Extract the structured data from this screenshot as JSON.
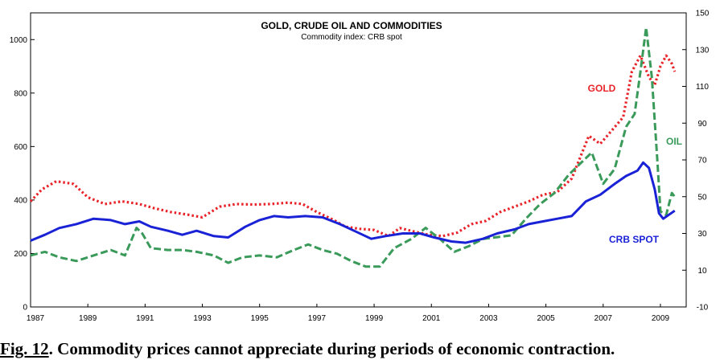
{
  "colors": {
    "gold": "#e8242a",
    "oil": "#3a9a5a",
    "crb": "#1a22d6",
    "axis": "#000000",
    "background": "#ffffff"
  },
  "caption": {
    "fig_ref": "Fig. 12",
    "text": ". Commodity prices cannot appreciate during periods of economic contraction."
  },
  "chart_data": {
    "type": "line",
    "title": "GOLD, CRUDE OIL AND COMMODITIES",
    "subtitle": "Commodity index: CRB spot",
    "legend_placement": "inline labels near series",
    "grid": false,
    "x_ticks": [
      "1987",
      "1989",
      "1991",
      "1993",
      "1995",
      "1997",
      "1999",
      "2001",
      "2003",
      "2005",
      "2007",
      "2009"
    ],
    "xlim": [
      1987,
      2009.9
    ],
    "ylim_left": [
      0,
      1100
    ],
    "yticks_left": [
      "0",
      "200",
      "400",
      "600",
      "800",
      "1000"
    ],
    "ylim_right": [
      -10,
      150
    ],
    "yticks_right": [
      "-10",
      "10",
      "30",
      "50",
      "70",
      "90",
      "110",
      "130",
      "150"
    ],
    "series": [
      {
        "name": "GOLD",
        "axis": "left",
        "style": "dotted",
        "points": [
          [
            1987.0,
            395
          ],
          [
            1987.4,
            440
          ],
          [
            1987.9,
            470
          ],
          [
            1988.5,
            460
          ],
          [
            1989.0,
            410
          ],
          [
            1989.6,
            385
          ],
          [
            1990.2,
            395
          ],
          [
            1990.8,
            385
          ],
          [
            1991.3,
            370
          ],
          [
            1991.9,
            355
          ],
          [
            1992.5,
            345
          ],
          [
            1993.0,
            335
          ],
          [
            1993.6,
            375
          ],
          [
            1994.2,
            385
          ],
          [
            1994.8,
            383
          ],
          [
            1995.4,
            385
          ],
          [
            1996.0,
            390
          ],
          [
            1996.5,
            385
          ],
          [
            1997.0,
            355
          ],
          [
            1997.6,
            325
          ],
          [
            1998.0,
            300
          ],
          [
            1998.5,
            292
          ],
          [
            1999.0,
            288
          ],
          [
            1999.5,
            265
          ],
          [
            1999.9,
            295
          ],
          [
            2000.4,
            282
          ],
          [
            2000.9,
            270
          ],
          [
            2001.4,
            265
          ],
          [
            2001.9,
            278
          ],
          [
            2002.4,
            310
          ],
          [
            2002.9,
            322
          ],
          [
            2003.4,
            355
          ],
          [
            2003.9,
            375
          ],
          [
            2004.4,
            395
          ],
          [
            2004.9,
            420
          ],
          [
            2005.4,
            430
          ],
          [
            2005.9,
            480
          ],
          [
            2006.2,
            560
          ],
          [
            2006.5,
            640
          ],
          [
            2006.9,
            610
          ],
          [
            2007.3,
            660
          ],
          [
            2007.7,
            710
          ],
          [
            2008.0,
            880
          ],
          [
            2008.3,
            940
          ],
          [
            2008.6,
            860
          ],
          [
            2008.8,
            830
          ],
          [
            2009.0,
            900
          ],
          [
            2009.2,
            940
          ],
          [
            2009.4,
            910
          ],
          [
            2009.5,
            880
          ]
        ]
      },
      {
        "name": "OIL",
        "axis": "right",
        "style": "dashed",
        "points": [
          [
            1987.0,
            18
          ],
          [
            1987.5,
            20
          ],
          [
            1988.0,
            17
          ],
          [
            1988.6,
            15
          ],
          [
            1989.2,
            18
          ],
          [
            1989.8,
            21
          ],
          [
            1990.3,
            18
          ],
          [
            1990.7,
            33
          ],
          [
            1990.9,
            30
          ],
          [
            1991.2,
            22
          ],
          [
            1991.8,
            21
          ],
          [
            1992.3,
            21
          ],
          [
            1992.8,
            20
          ],
          [
            1993.4,
            18
          ],
          [
            1993.9,
            14
          ],
          [
            1994.4,
            17
          ],
          [
            1995.0,
            18
          ],
          [
            1995.6,
            17
          ],
          [
            1996.2,
            21
          ],
          [
            1996.7,
            24
          ],
          [
            1997.2,
            21
          ],
          [
            1997.7,
            19
          ],
          [
            1998.2,
            15
          ],
          [
            1998.7,
            12
          ],
          [
            1999.2,
            12
          ],
          [
            1999.7,
            22
          ],
          [
            2000.3,
            27
          ],
          [
            2000.8,
            33
          ],
          [
            2001.3,
            27
          ],
          [
            2001.8,
            20
          ],
          [
            2002.3,
            23
          ],
          [
            2002.8,
            27
          ],
          [
            2003.3,
            28
          ],
          [
            2003.8,
            29
          ],
          [
            2004.3,
            38
          ],
          [
            2004.8,
            46
          ],
          [
            2005.3,
            52
          ],
          [
            2005.8,
            62
          ],
          [
            2006.2,
            68
          ],
          [
            2006.6,
            74
          ],
          [
            2007.0,
            57
          ],
          [
            2007.4,
            65
          ],
          [
            2007.8,
            88
          ],
          [
            2008.1,
            95
          ],
          [
            2008.3,
            118
          ],
          [
            2008.5,
            142
          ],
          [
            2008.7,
            115
          ],
          [
            2008.9,
            68
          ],
          [
            2009.0,
            42
          ],
          [
            2009.2,
            40
          ],
          [
            2009.4,
            52
          ],
          [
            2009.5,
            50
          ]
        ]
      },
      {
        "name": "CRB SPOT",
        "axis": "left",
        "style": "solid",
        "points": [
          [
            1987.0,
            248
          ],
          [
            1987.5,
            270
          ],
          [
            1988.0,
            295
          ],
          [
            1988.6,
            310
          ],
          [
            1989.2,
            330
          ],
          [
            1989.8,
            325
          ],
          [
            1990.3,
            310
          ],
          [
            1990.8,
            320
          ],
          [
            1991.2,
            300
          ],
          [
            1991.8,
            285
          ],
          [
            1992.3,
            270
          ],
          [
            1992.8,
            285
          ],
          [
            1993.4,
            265
          ],
          [
            1993.9,
            260
          ],
          [
            1994.5,
            300
          ],
          [
            1995.0,
            325
          ],
          [
            1995.5,
            340
          ],
          [
            1996.0,
            335
          ],
          [
            1996.6,
            340
          ],
          [
            1997.2,
            335
          ],
          [
            1997.8,
            310
          ],
          [
            1998.3,
            285
          ],
          [
            1998.9,
            255
          ],
          [
            1999.4,
            265
          ],
          [
            2000.0,
            275
          ],
          [
            2000.6,
            275
          ],
          [
            2001.1,
            260
          ],
          [
            2001.7,
            245
          ],
          [
            2002.2,
            240
          ],
          [
            2002.8,
            255
          ],
          [
            2003.3,
            275
          ],
          [
            2003.9,
            290
          ],
          [
            2004.4,
            310
          ],
          [
            2004.9,
            320
          ],
          [
            2005.4,
            330
          ],
          [
            2005.9,
            340
          ],
          [
            2006.4,
            395
          ],
          [
            2006.9,
            420
          ],
          [
            2007.4,
            460
          ],
          [
            2007.8,
            490
          ],
          [
            2008.2,
            510
          ],
          [
            2008.4,
            540
          ],
          [
            2008.6,
            520
          ],
          [
            2008.8,
            440
          ],
          [
            2008.95,
            350
          ],
          [
            2009.1,
            330
          ],
          [
            2009.3,
            345
          ],
          [
            2009.5,
            360
          ]
        ]
      }
    ],
    "series_label_colors": [
      "#e8242a",
      "#3a9a5a",
      "#1a22d6"
    ]
  }
}
